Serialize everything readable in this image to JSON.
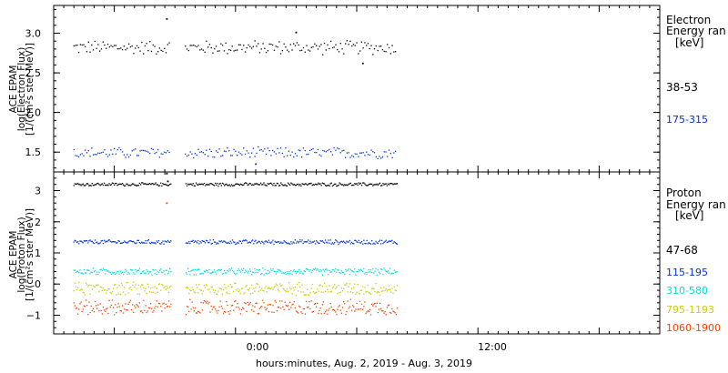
{
  "x_axis": {
    "label": "hours:minutes, Aug.  2, 2019 - Aug.  3, 2019",
    "ticks": [
      {
        "label": "0:00",
        "hour": 0
      },
      {
        "label": "12:00",
        "hour": 12
      }
    ],
    "range_hours": [
      -9,
      21
    ]
  },
  "chart_data": [
    {
      "type": "scatter",
      "panel": "electron",
      "ylabel": [
        "ACE EPAM",
        "log(Electron Flux)",
        "[1/(cm²s ster MeV)]"
      ],
      "ylim": [
        1.25,
        3.35
      ],
      "yticks": [
        1.5,
        2.0,
        2.5,
        3.0
      ],
      "ytick_labels": [
        "1.5",
        "2.0",
        "2.5",
        "3.0"
      ],
      "legend": {
        "title": [
          "Electron",
          "Energy ran",
          "[keV]"
        ],
        "placement": "right"
      },
      "series": [
        {
          "name": "38-53",
          "color": "#000000",
          "base": 2.82,
          "amp": 0.05,
          "spikes": [
            {
              "x": -3.4,
              "y": 3.18
            },
            {
              "x": 3.0,
              "y": 3.01
            },
            {
              "x": 6.3,
              "y": 2.62
            }
          ]
        },
        {
          "name": "175-315",
          "color": "#0033cc",
          "base": 1.49,
          "amp": 0.04,
          "spikes": [
            {
              "x": 1.0,
              "y": 1.35
            }
          ]
        }
      ],
      "gap_hours": [
        -3.2,
        -2.5
      ],
      "data_end_hour": 8.0
    },
    {
      "type": "scatter",
      "panel": "proton",
      "ylabel": [
        "ACE EPAM",
        "log(Proton Flux)",
        "[1/(cm²s ster MeV)]"
      ],
      "ylim": [
        -1.6,
        3.6
      ],
      "yticks": [
        -1,
        0,
        1,
        2,
        3
      ],
      "ytick_labels": [
        "−1",
        "0",
        "1",
        "2",
        "3"
      ],
      "legend": {
        "title": [
          "Proton",
          "Energy ran",
          "[keV]"
        ],
        "placement": "right"
      },
      "series": [
        {
          "name": "47-68",
          "color": "#000000",
          "base": 3.2,
          "amp": 0.03,
          "spikes": [
            {
              "x": -3.4,
              "y": 3.55
            },
            {
              "x": -3.35,
              "y": 3.3
            }
          ]
        },
        {
          "name": "115-195",
          "color": "#0033cc",
          "base": 1.35,
          "amp": 0.04,
          "spikes": []
        },
        {
          "name": "310-580",
          "color": "#00dddd",
          "base": 0.4,
          "amp": 0.06,
          "spikes": []
        },
        {
          "name": "795-1193",
          "color": "#cccc00",
          "base": -0.15,
          "amp": 0.12,
          "spikes": []
        },
        {
          "name": "1060-1900",
          "color": "#ee4400",
          "base": -0.75,
          "amp": 0.14,
          "spikes": [
            {
              "x": -3.4,
              "y": 2.6
            }
          ]
        }
      ],
      "gap_hours": [
        -3.2,
        -2.5
      ],
      "data_end_hour": 8.0
    }
  ]
}
